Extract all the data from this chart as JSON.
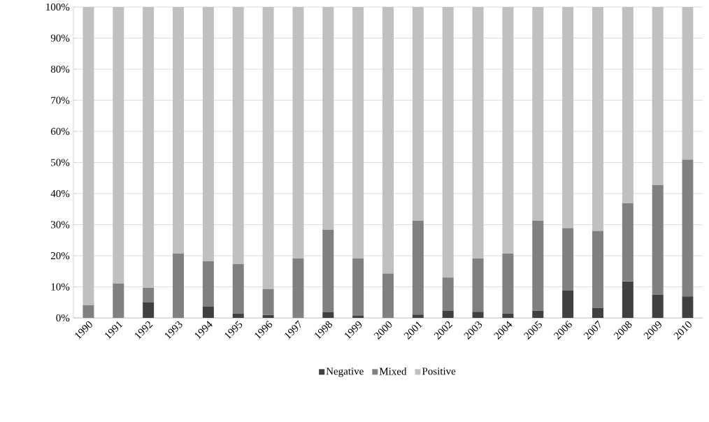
{
  "chart_data": {
    "type": "bar",
    "stacked": true,
    "categories": [
      "1990",
      "1991",
      "1992",
      "1993",
      "1994",
      "1995",
      "1996",
      "1997",
      "1998",
      "1999",
      "2000",
      "2001",
      "2002",
      "2003",
      "2004",
      "2005",
      "2006",
      "2007",
      "2008",
      "2009",
      "2010"
    ],
    "series": [
      {
        "name": "Negative",
        "color": "#404040",
        "values": [
          0,
          0,
          5.1,
          0,
          3.6,
          1.4,
          1.0,
          0,
          1.8,
          0.8,
          0,
          1.1,
          2.3,
          2.0,
          1.4,
          2.3,
          8.8,
          3.2,
          11.8,
          7.5,
          6.9
        ]
      },
      {
        "name": "Mixed",
        "color": "#808080",
        "values": [
          4.1,
          11.1,
          4.6,
          20.7,
          14.6,
          15.9,
          8.3,
          19.1,
          26.6,
          18.3,
          14.3,
          30.2,
          10.7,
          17.1,
          19.3,
          29.0,
          20.1,
          24.8,
          25.1,
          35.2,
          44.0
        ]
      },
      {
        "name": "Positive",
        "color": "#c0c0c0",
        "values": [
          95.9,
          88.9,
          90.3,
          79.3,
          81.8,
          82.7,
          90.7,
          80.9,
          71.6,
          80.9,
          85.7,
          68.7,
          87.0,
          80.9,
          79.3,
          68.7,
          71.1,
          72.0,
          63.1,
          57.3,
          49.1
        ]
      }
    ],
    "ylim": [
      0,
      100
    ],
    "yticks": [
      {
        "value": 0,
        "label": "0%"
      },
      {
        "value": 10,
        "label": "10%"
      },
      {
        "value": 20,
        "label": "20%"
      },
      {
        "value": 30,
        "label": "30%"
      },
      {
        "value": 40,
        "label": "40%"
      },
      {
        "value": 50,
        "label": "50%"
      },
      {
        "value": 60,
        "label": "60%"
      },
      {
        "value": 70,
        "label": "70%"
      },
      {
        "value": 80,
        "label": "80%"
      },
      {
        "value": 90,
        "label": "90%"
      },
      {
        "value": 100,
        "label": "100%"
      }
    ],
    "grid": "y",
    "legend": "bottom"
  }
}
